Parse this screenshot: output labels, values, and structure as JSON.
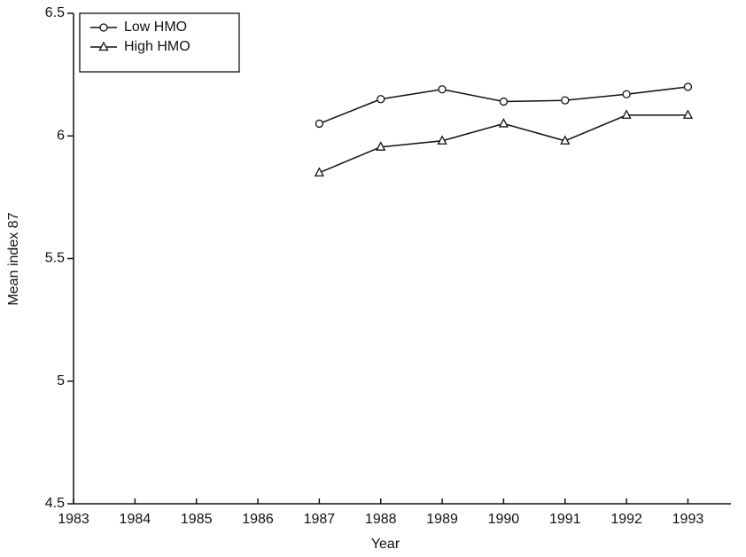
{
  "chart_data": {
    "type": "line",
    "x_label": "Year",
    "y_label": "Mean index 87",
    "x": [
      1987,
      1988,
      1989,
      1990,
      1991,
      1992,
      1993
    ],
    "series": [
      {
        "name": "Low HMO",
        "color": "#111111",
        "marker": "circle",
        "values": [
          6.05,
          6.15,
          6.19,
          6.14,
          6.145,
          6.17,
          6.2
        ]
      },
      {
        "name": "High HMO",
        "color": "#111111",
        "marker": "triangle",
        "values": [
          5.85,
          5.955,
          5.98,
          6.05,
          5.98,
          6.085,
          6.085
        ]
      }
    ],
    "xlim": [
      1983,
      1993.7
    ],
    "xticks": [
      1983,
      1984,
      1985,
      1986,
      1987,
      1988,
      1989,
      1990,
      1991,
      1992,
      1993
    ],
    "ylim": [
      4.5,
      6.5
    ],
    "yticks": [
      4.5,
      5,
      5.5,
      6,
      6.5
    ],
    "grid": false,
    "legend": "top-left"
  }
}
